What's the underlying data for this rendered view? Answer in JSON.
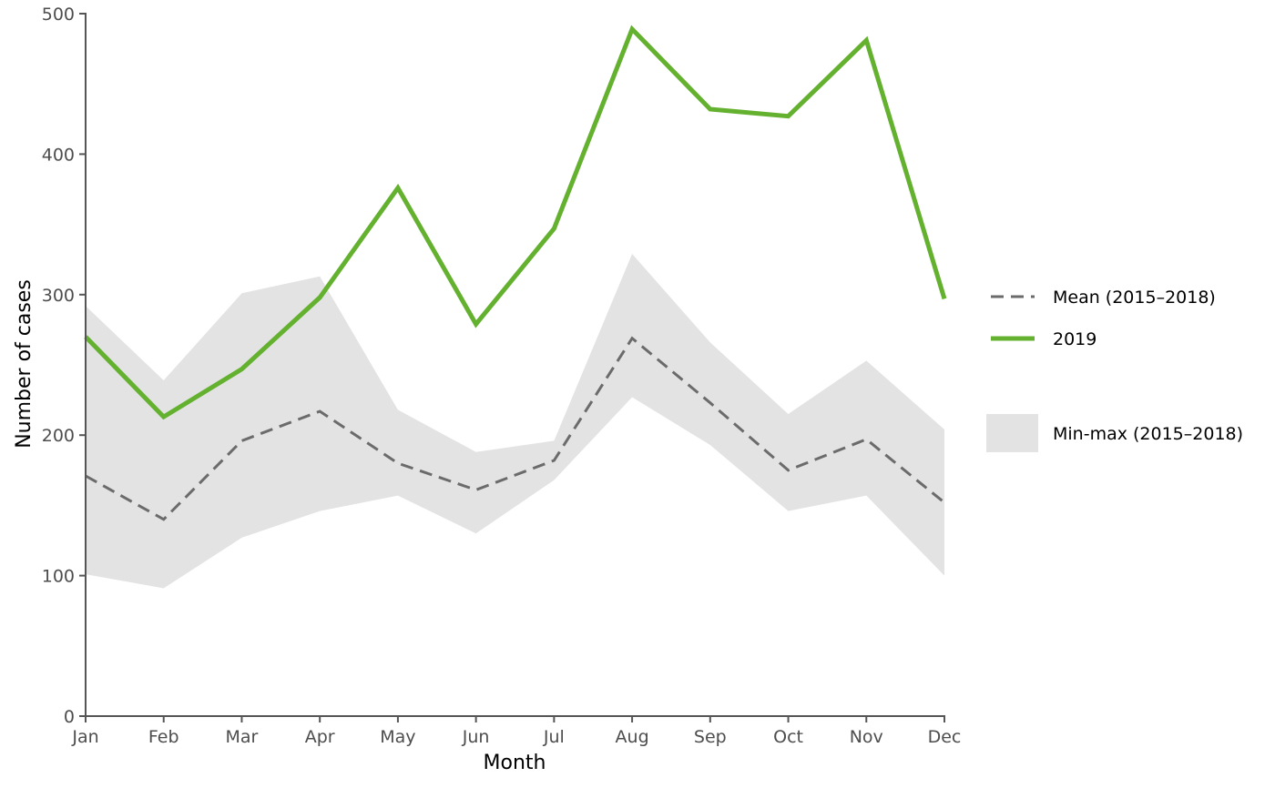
{
  "chart_data": {
    "type": "line",
    "title": "",
    "xlabel": "Month",
    "ylabel": "Number of cases",
    "categories": [
      "Jan",
      "Feb",
      "Mar",
      "Apr",
      "May",
      "Jun",
      "Jul",
      "Aug",
      "Sep",
      "Oct",
      "Nov",
      "Dec"
    ],
    "ylim": [
      0,
      500
    ],
    "yticks": [
      0,
      100,
      200,
      300,
      400,
      500
    ],
    "grid": false,
    "legend_position": "right",
    "band": {
      "name": "Min-max (2015–2018)",
      "color": "#e3e3e3",
      "min": [
        101,
        91,
        127,
        146,
        157,
        130,
        168,
        227,
        193,
        146,
        157,
        100
      ],
      "max": [
        292,
        239,
        301,
        313,
        218,
        188,
        196,
        329,
        266,
        215,
        253,
        204
      ]
    },
    "series": [
      {
        "name": "Mean (2015–2018)",
        "style": "dashed",
        "color": "#6b6b6b",
        "values": [
          171,
          140,
          196,
          217,
          180,
          161,
          182,
          269,
          223,
          175,
          197,
          152
        ]
      },
      {
        "name": "2019",
        "style": "solid",
        "color": "#63b12f",
        "values": [
          270,
          213,
          247,
          298,
          376,
          279,
          347,
          489,
          432,
          427,
          481,
          297
        ]
      }
    ]
  }
}
